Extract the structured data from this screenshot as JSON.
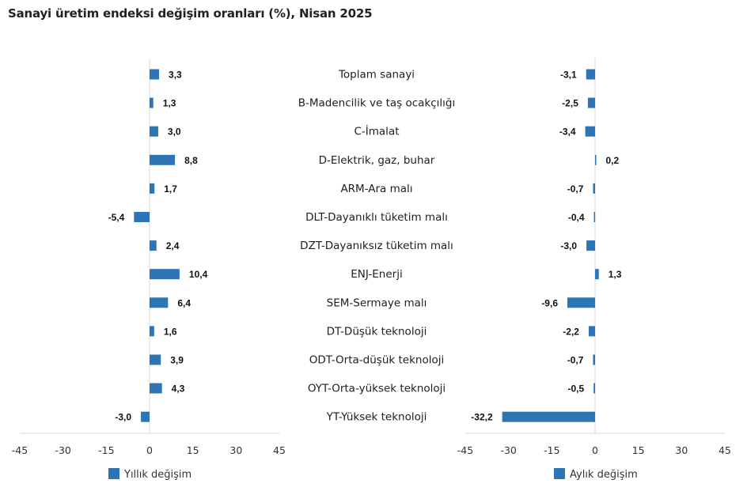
{
  "chart_data": [
    {
      "type": "bar",
      "orientation": "horizontal",
      "title": "Sanayi üretim endeksi değişim oranları (%), Nisan 2025",
      "categories": [
        "Toplam sanayi",
        "B-Madencilik ve taş ocakçılığı",
        "C-İmalat",
        "D-Elektrik, gaz, buhar",
        "ARM-Ara malı",
        "DLT-Dayanıklı tüketim malı",
        "DZT-Dayanıksız tüketim malı",
        "ENJ-Enerji",
        "SEM-Sermaye malı",
        "DT-Düşük teknoloji",
        "ODT-Orta-düşük teknoloji",
        "OYT-Orta-yüksek teknoloji",
        "YT-Yüksek teknoloji"
      ],
      "series": [
        {
          "name": "Yıllık değişim",
          "color": "#2e75b6",
          "values": [
            3.3,
            1.3,
            3.0,
            8.8,
            1.7,
            -5.4,
            2.4,
            10.4,
            6.4,
            1.6,
            3.9,
            4.3,
            -3.0
          ],
          "labels": [
            "3,3",
            "1,3",
            "3,0",
            "8,8",
            "1,7",
            "-5,4",
            "2,4",
            "10,4",
            "6,4",
            "1,6",
            "3,9",
            "4,3",
            "-3,0"
          ]
        }
      ],
      "xlim": [
        -45,
        45
      ],
      "xticks": [
        -45,
        -30,
        -15,
        0,
        15,
        30,
        45
      ],
      "xtick_labels": [
        "-45",
        "-30",
        "-15",
        "0",
        "15",
        "30",
        "45"
      ],
      "legend": "bottom-center",
      "grid": false
    },
    {
      "type": "bar",
      "orientation": "horizontal",
      "categories": [
        "Toplam sanayi",
        "B-Madencilik ve taş ocakçılığı",
        "C-İmalat",
        "D-Elektrik, gaz, buhar",
        "ARM-Ara malı",
        "DLT-Dayanıklı tüketim malı",
        "DZT-Dayanıksız tüketim malı",
        "ENJ-Enerji",
        "SEM-Sermaye malı",
        "DT-Düşük teknoloji",
        "ODT-Orta-düşük teknoloji",
        "OYT-Orta-yüksek teknoloji",
        "YT-Yüksek teknoloji"
      ],
      "series": [
        {
          "name": "Aylık değişim",
          "color": "#2e75b6",
          "values": [
            -3.1,
            -2.5,
            -3.4,
            0.2,
            -0.7,
            -0.4,
            -3.0,
            1.3,
            -9.6,
            -2.2,
            -0.7,
            -0.5,
            -32.2
          ],
          "labels": [
            "-3,1",
            "-2,5",
            "-3,4",
            "0,2",
            "-0,7",
            "-0,4",
            "-3,0",
            "1,3",
            "-9,6",
            "-2,2",
            "-0,7",
            "-0,5",
            "-32,2"
          ]
        }
      ],
      "xlim": [
        -45,
        45
      ],
      "xticks": [
        -45,
        -30,
        -15,
        0,
        15,
        30,
        45
      ],
      "xtick_labels": [
        "-45",
        "-30",
        "-15",
        "0",
        "15",
        "30",
        "45"
      ],
      "legend": "bottom-center",
      "grid": false
    }
  ]
}
